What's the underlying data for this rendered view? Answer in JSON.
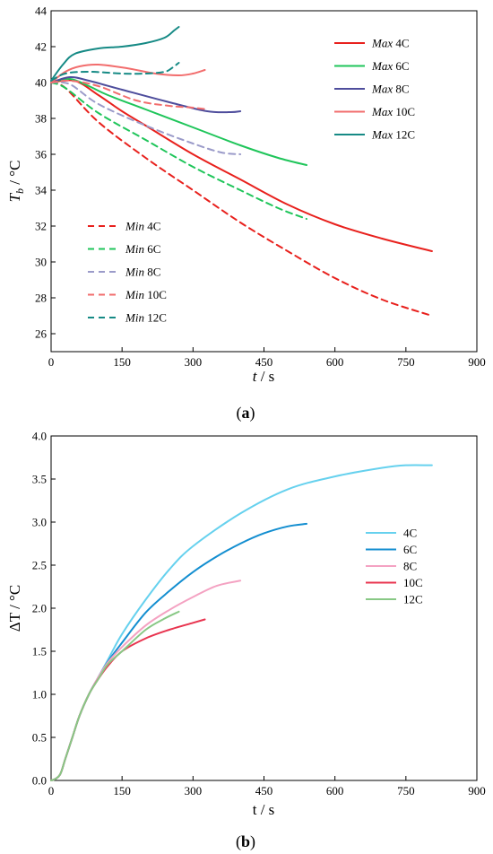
{
  "chart_data": [
    {
      "type": "line",
      "panel_label": "a",
      "xlabel_sym": "t",
      "xlabel_unit": " / s",
      "ylabel_sym": "T",
      "ylabel_sub": "b",
      "ylabel_unit": " / °C",
      "xlim": [
        0,
        900
      ],
      "ylim": [
        25,
        44
      ],
      "xticks": [
        0,
        150,
        300,
        450,
        600,
        750,
        900
      ],
      "yticks": [
        26,
        28,
        30,
        32,
        34,
        36,
        38,
        40,
        42,
        44
      ],
      "grid": false,
      "legend_max": "top-right",
      "legend_min": "bottom-left",
      "series": [
        {
          "name_pre": "Max",
          "name_rest": " 4C",
          "color": "#e8211d",
          "dash": false,
          "x": [
            0,
            50,
            100,
            150,
            200,
            300,
            400,
            500,
            600,
            700,
            805
          ],
          "y": [
            40.0,
            40.1,
            39.3,
            38.4,
            37.6,
            36.0,
            34.6,
            33.2,
            32.1,
            31.3,
            30.6
          ]
        },
        {
          "name_pre": "Max",
          "name_rest": " 6C",
          "color": "#1fc55a",
          "dash": false,
          "x": [
            0,
            40,
            80,
            120,
            200,
            300,
            400,
            480,
            540
          ],
          "y": [
            40.0,
            40.2,
            39.8,
            39.3,
            38.5,
            37.5,
            36.5,
            35.8,
            35.4
          ]
        },
        {
          "name_pre": "Max",
          "name_rest": " 8C",
          "color": "#4e4d9c",
          "dash": false,
          "x": [
            0,
            40,
            80,
            150,
            250,
            330,
            380,
            400
          ],
          "y": [
            40.0,
            40.3,
            40.1,
            39.6,
            38.9,
            38.4,
            38.35,
            38.4
          ]
        },
        {
          "name_pre": "Max",
          "name_rest": " 10C",
          "color": "#f26d6d",
          "dash": false,
          "x": [
            0,
            30,
            60,
            100,
            160,
            220,
            270,
            300,
            325
          ],
          "y": [
            40.0,
            40.6,
            40.9,
            41.0,
            40.8,
            40.5,
            40.4,
            40.5,
            40.7
          ]
        },
        {
          "name_pre": "Max",
          "name_rest": " 12C",
          "color": "#168a85",
          "dash": false,
          "x": [
            0,
            25,
            50,
            100,
            150,
            200,
            240,
            260,
            270
          ],
          "y": [
            40.1,
            41.0,
            41.6,
            41.9,
            42.0,
            42.2,
            42.5,
            42.9,
            43.1
          ]
        },
        {
          "name_pre": "Min",
          "name_rest": " 4C",
          "color": "#e8211d",
          "dash": true,
          "x": [
            0,
            30,
            100,
            200,
            300,
            400,
            500,
            600,
            700,
            805
          ],
          "y": [
            40.0,
            39.7,
            37.8,
            35.8,
            34.0,
            32.2,
            30.6,
            29.1,
            27.9,
            27.0
          ]
        },
        {
          "name_pre": "Min",
          "name_rest": " 6C",
          "color": "#1fc55a",
          "dash": true,
          "x": [
            0,
            30,
            100,
            200,
            300,
            400,
            480,
            540
          ],
          "y": [
            40.0,
            39.7,
            38.3,
            36.8,
            35.3,
            34.0,
            33.0,
            32.4
          ]
        },
        {
          "name_pre": "Min",
          "name_rest": " 8C",
          "color": "#9b9bc9",
          "dash": true,
          "x": [
            0,
            40,
            100,
            200,
            300,
            360,
            400
          ],
          "y": [
            40.0,
            39.9,
            38.8,
            37.6,
            36.6,
            36.1,
            36.0
          ]
        },
        {
          "name_pre": "Min",
          "name_rest": " 10C",
          "color": "#f26d6d",
          "dash": true,
          "x": [
            0,
            40,
            100,
            180,
            250,
            300,
            330
          ],
          "y": [
            40.0,
            40.1,
            39.8,
            39.0,
            38.7,
            38.6,
            38.5
          ]
        },
        {
          "name_pre": "Min",
          "name_rest": " 12C",
          "color": "#168a85",
          "dash": true,
          "x": [
            0,
            30,
            80,
            150,
            200,
            240,
            255,
            270
          ],
          "y": [
            40.1,
            40.5,
            40.6,
            40.5,
            40.5,
            40.6,
            40.8,
            41.1
          ]
        }
      ]
    },
    {
      "type": "line",
      "panel_label": "b",
      "xlabel_sym": "t / s",
      "ylabel_sym": "ΔT",
      "ylabel_unit": " / °C",
      "xlim": [
        0,
        900
      ],
      "ylim": [
        0,
        4.0
      ],
      "xticks": [
        0,
        150,
        300,
        450,
        600,
        750,
        900
      ],
      "yticks": [
        0.0,
        0.5,
        1.0,
        1.5,
        2.0,
        2.5,
        3.0,
        3.5,
        4.0
      ],
      "ytick_labels": [
        "0.0",
        "0.5",
        "1.0",
        "1.5",
        "2.0",
        "2.5",
        "3.0",
        "3.5",
        "4.0"
      ],
      "grid": false,
      "legend": "center-right",
      "series": [
        {
          "name": "4C",
          "color": "#66d1ee",
          "x": [
            0,
            10,
            20,
            30,
            45,
            60,
            80,
            100,
            120,
            150,
            200,
            250,
            300,
            400,
            500,
            600,
            700,
            750,
            805
          ],
          "y": [
            0,
            0.02,
            0.08,
            0.25,
            0.5,
            0.75,
            1.0,
            1.2,
            1.4,
            1.7,
            2.1,
            2.45,
            2.72,
            3.1,
            3.38,
            3.53,
            3.63,
            3.66,
            3.66
          ]
        },
        {
          "name": "6C",
          "color": "#138ed0",
          "x": [
            0,
            10,
            20,
            30,
            45,
            60,
            80,
            100,
            120,
            150,
            200,
            250,
            300,
            350,
            400,
            450,
            500,
            540
          ],
          "y": [
            0,
            0.02,
            0.08,
            0.25,
            0.5,
            0.75,
            1.0,
            1.2,
            1.38,
            1.6,
            1.95,
            2.2,
            2.42,
            2.6,
            2.75,
            2.87,
            2.95,
            2.98
          ]
        },
        {
          "name": "8C",
          "color": "#f4a2c2",
          "x": [
            0,
            10,
            20,
            30,
            45,
            60,
            80,
            100,
            120,
            150,
            200,
            250,
            300,
            350,
            400
          ],
          "y": [
            0,
            0.02,
            0.08,
            0.25,
            0.5,
            0.75,
            1.0,
            1.2,
            1.37,
            1.55,
            1.8,
            1.98,
            2.13,
            2.26,
            2.32
          ]
        },
        {
          "name": "10C",
          "color": "#e8344f",
          "x": [
            0,
            10,
            20,
            30,
            45,
            60,
            80,
            100,
            120,
            150,
            200,
            250,
            300,
            325
          ],
          "y": [
            0,
            0.02,
            0.08,
            0.25,
            0.5,
            0.75,
            1.0,
            1.18,
            1.33,
            1.5,
            1.65,
            1.75,
            1.83,
            1.87
          ]
        },
        {
          "name": "12C",
          "color": "#88c885",
          "x": [
            0,
            10,
            20,
            30,
            45,
            60,
            80,
            100,
            120,
            150,
            200,
            240,
            270
          ],
          "y": [
            0,
            0.02,
            0.08,
            0.25,
            0.5,
            0.75,
            1.0,
            1.18,
            1.35,
            1.5,
            1.75,
            1.88,
            1.96
          ]
        }
      ]
    }
  ]
}
